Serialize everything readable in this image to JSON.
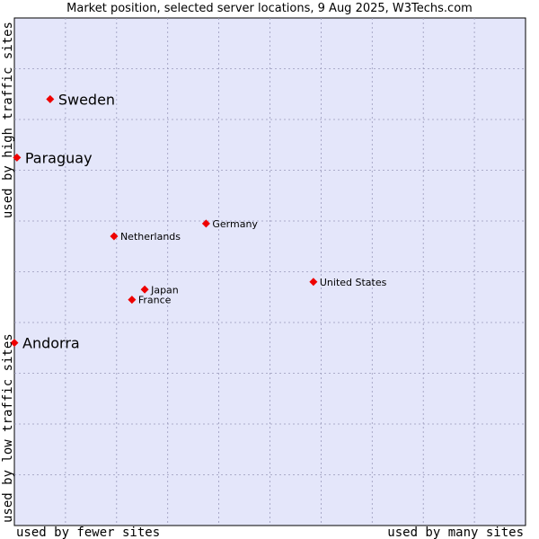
{
  "chart_data": {
    "type": "scatter",
    "title": "Market position, selected server locations, 9 Aug 2025, W3Techs.com",
    "xlabel_left": "used by fewer sites",
    "xlabel_right": "used by many sites",
    "ylabel_bottom": "used by low traffic sites",
    "ylabel_top": "used by high traffic sites",
    "xlim": [
      0,
      100
    ],
    "ylim": [
      0,
      100
    ],
    "grid": true,
    "marker_color": "#ee0000",
    "plot_background": "#e4e6fa",
    "grid_color": "#9999bb",
    "points": [
      {
        "label": "Sweden",
        "x": 7,
        "y": 84,
        "size": "large"
      },
      {
        "label": "Paraguay",
        "x": 0.5,
        "y": 72.5,
        "size": "large"
      },
      {
        "label": "Andorra",
        "x": 0,
        "y": 36,
        "size": "large"
      },
      {
        "label": "Germany",
        "x": 37.5,
        "y": 59.5,
        "size": "small"
      },
      {
        "label": "Netherlands",
        "x": 19.5,
        "y": 57,
        "size": "small"
      },
      {
        "label": "United States",
        "x": 58.5,
        "y": 48,
        "size": "small"
      },
      {
        "label": "Japan",
        "x": 25.5,
        "y": 46.5,
        "size": "small"
      },
      {
        "label": "France",
        "x": 23,
        "y": 44.5,
        "size": "small"
      }
    ]
  }
}
